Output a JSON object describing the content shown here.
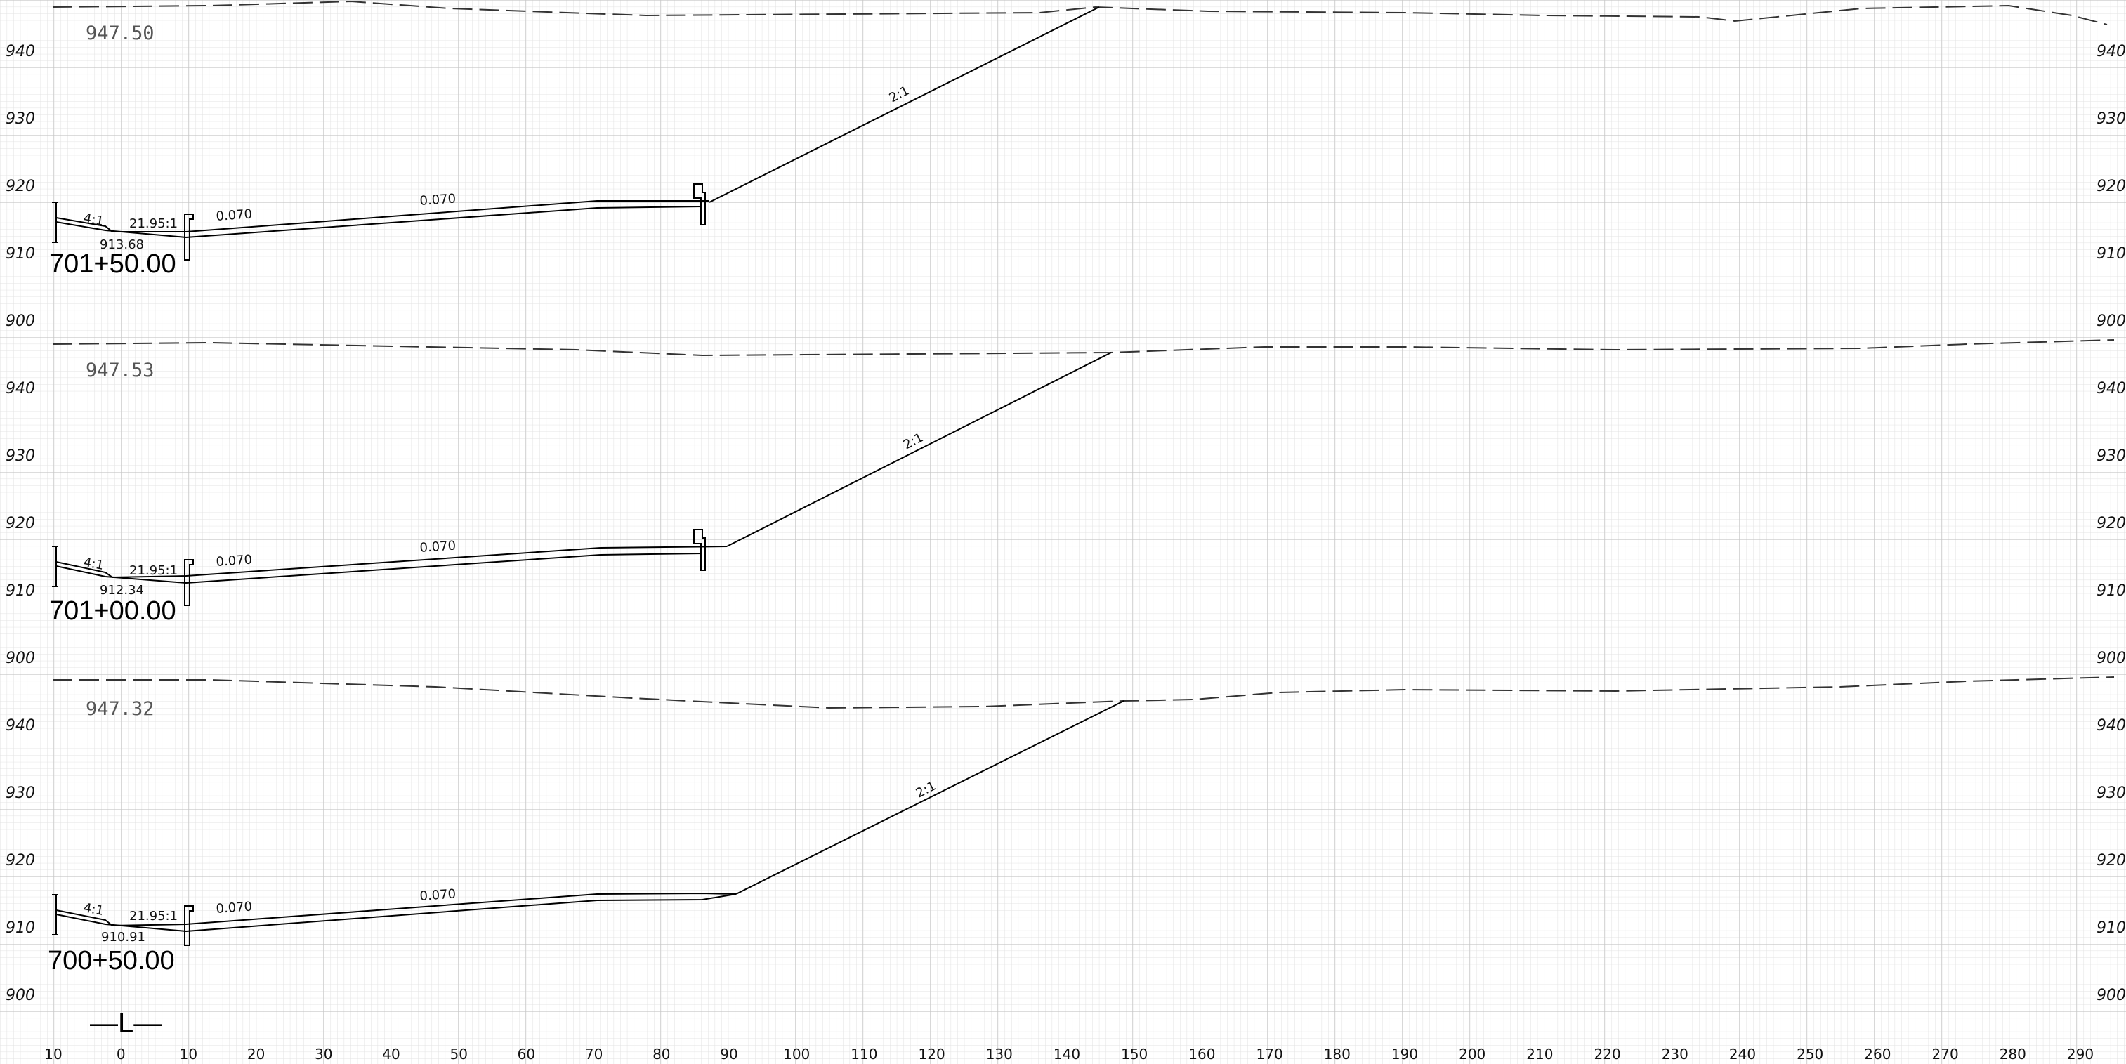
{
  "colors": {
    "paper": "#ffffff",
    "grid_minor": "#e2e2e2",
    "grid_major": "#c6c6c6",
    "linework": "#000000",
    "existing_ground": "#333333"
  },
  "axes": {
    "elevation_labels": [
      "940",
      "930",
      "920",
      "910",
      "900"
    ],
    "offset_labels": [
      "10",
      "0",
      "10",
      "20",
      "30",
      "40",
      "50",
      "60",
      "70",
      "80",
      "90",
      "100",
      "110",
      "120",
      "130",
      "140",
      "150",
      "160",
      "170",
      "180",
      "190",
      "200",
      "210",
      "220",
      "230",
      "240",
      "250",
      "260",
      "270",
      "280",
      "290"
    ]
  },
  "sections": [
    {
      "station": "701+50.00",
      "ground_elevation": "947.50",
      "low_point_elevation": "913.68",
      "slope_labels": {
        "fill": "4:1",
        "ditch": "21.95:1",
        "lane_1": "0.070",
        "lane_2": "0.070",
        "cut": "2:1"
      }
    },
    {
      "station": "701+00.00",
      "ground_elevation": "947.53",
      "low_point_elevation": "912.34",
      "slope_labels": {
        "fill": "4:1",
        "ditch": "21.95:1",
        "lane_1": "0.070",
        "lane_2": "0.070",
        "cut": "2:1"
      }
    },
    {
      "station": "700+50.00",
      "ground_elevation": "947.32",
      "low_point_elevation": "910.91",
      "slope_labels": {
        "fill": "4:1",
        "ditch": "21.95:1",
        "lane_1": "0.070",
        "lane_2": "0.070",
        "cut": "2:1"
      }
    }
  ],
  "centerline_symbol": "—L—"
}
